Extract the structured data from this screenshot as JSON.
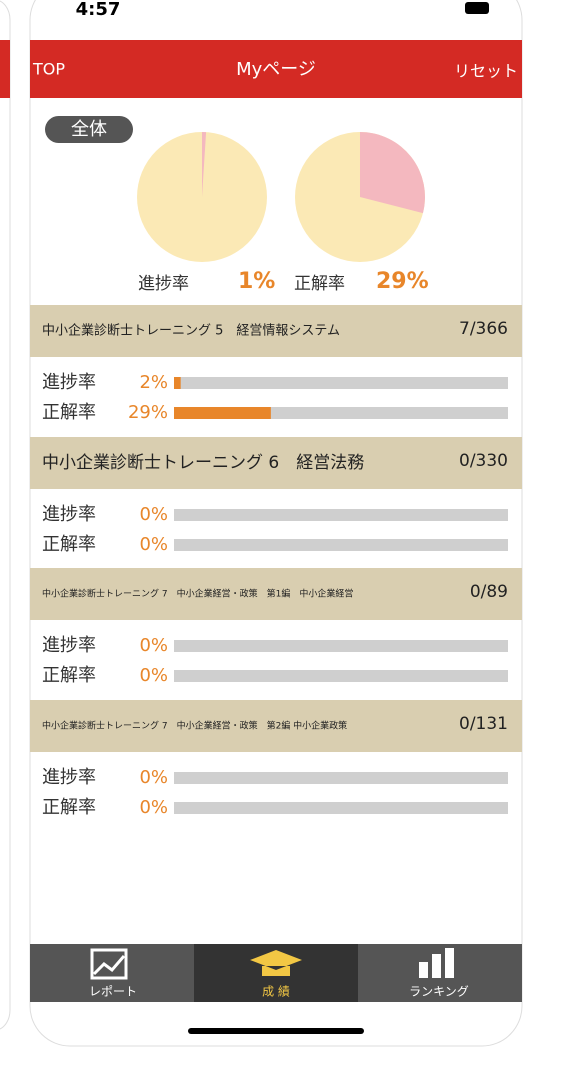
{
  "status_bar": {
    "time": "4:57"
  },
  "header": {
    "left": "TOP",
    "title": "Myページ",
    "right": "リセット"
  },
  "summary": {
    "badge": "全体",
    "progress": {
      "label": "進捗率",
      "value": 1,
      "value_label": "1%"
    },
    "accuracy": {
      "label": "正解率",
      "value": 29,
      "value_label": "29%"
    }
  },
  "courses": [
    {
      "title": "中小企業診断士トレーニング 5　経営情報システム",
      "count": "7/366",
      "progress": {
        "label": "進捗率",
        "value": 2,
        "value_label": "2%"
      },
      "accuracy": {
        "label": "正解率",
        "value": 29,
        "value_label": "29%"
      }
    },
    {
      "title": "中小企業診断士トレーニング 6　経営法務",
      "count": "0/330",
      "progress": {
        "label": "進捗率",
        "value": 0,
        "value_label": "0%"
      },
      "accuracy": {
        "label": "正解率",
        "value": 0,
        "value_label": "0%"
      }
    },
    {
      "title": "中小企業診断士トレーニング 7　中小企業経営・政策　第1編　中小企業経営",
      "count": "0/89",
      "progress": {
        "label": "進捗率",
        "value": 0,
        "value_label": "0%"
      },
      "accuracy": {
        "label": "正解率",
        "value": 0,
        "value_label": "0%"
      }
    },
    {
      "title": "中小企業診断士トレーニング 7　中小企業経営・政策　第2編 中小企業政策",
      "count": "0/131",
      "progress": {
        "label": "進捗率",
        "value": 0,
        "value_label": "0%"
      },
      "accuracy": {
        "label": "正解率",
        "value": 0,
        "value_label": "0%"
      }
    }
  ],
  "tabs": [
    {
      "label": "レポート"
    },
    {
      "label": "成 績"
    },
    {
      "label": "ランキング"
    }
  ]
}
